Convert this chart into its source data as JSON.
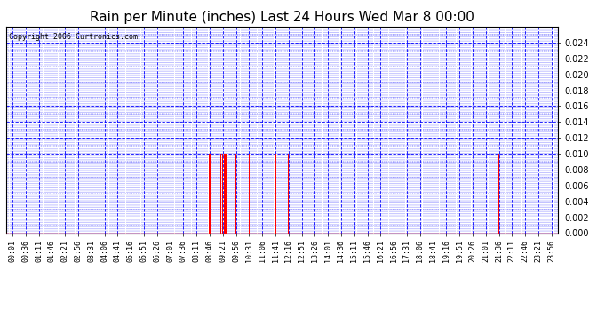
{
  "title": "Rain per Minute (inches) Last 24 Hours Wed Mar 8 00:00",
  "copyright": "Copyright 2006 Curtronics.com",
  "ylim": [
    0.0,
    0.026
  ],
  "yticks": [
    0.0,
    0.002,
    0.004,
    0.006,
    0.008,
    0.01,
    0.012,
    0.014,
    0.016,
    0.018,
    0.02,
    0.022,
    0.024
  ],
  "background_color": "#ffffff",
  "plot_bg_color": "#ffffff",
  "bar_color": "#ff0000",
  "grid_color": "#0000ff",
  "baseline_color": "#ff0000",
  "title_color": "#000000",
  "rain_data": {
    "08:46": 0.01,
    "09:16": 0.01,
    "09:21": 0.01,
    "09:26": 0.01,
    "09:31": 0.01,
    "09:56": 0.01,
    "10:31": 0.01,
    "11:41": 0.01,
    "12:16": 0.01,
    "21:36": 0.01
  },
  "tick_labels": [
    "00:01",
    "00:36",
    "01:11",
    "01:46",
    "02:21",
    "02:56",
    "03:31",
    "04:06",
    "04:41",
    "05:16",
    "05:51",
    "06:26",
    "07:01",
    "07:36",
    "08:11",
    "08:46",
    "09:21",
    "09:56",
    "10:31",
    "11:06",
    "11:41",
    "12:16",
    "12:51",
    "13:26",
    "14:01",
    "14:36",
    "15:11",
    "15:46",
    "16:21",
    "16:56",
    "17:31",
    "18:06",
    "18:41",
    "19:16",
    "19:51",
    "20:26",
    "21:01",
    "21:36",
    "22:11",
    "22:46",
    "23:21",
    "23:56"
  ]
}
